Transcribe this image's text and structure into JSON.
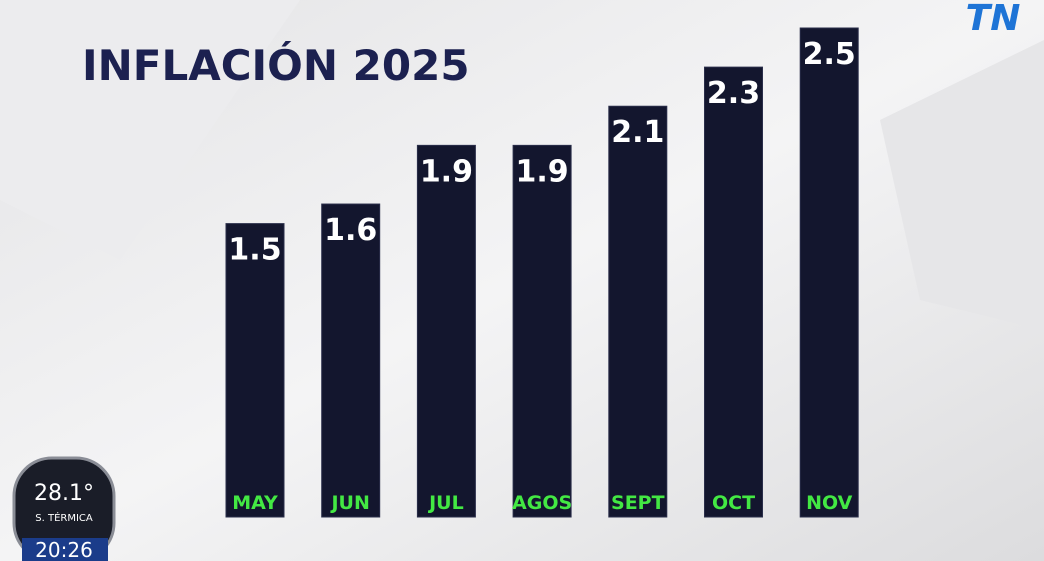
{
  "chart_data": {
    "type": "bar",
    "title": "INFLACIÓN 2025",
    "categories": [
      "MAY",
      "JUN",
      "JUL",
      "AGOS",
      "SEPT",
      "OCT",
      "NOV"
    ],
    "values": [
      1.5,
      1.6,
      1.9,
      1.9,
      2.1,
      2.3,
      2.5
    ],
    "color": "#13162e",
    "label_color": "#43e843"
  },
  "logo": "TN",
  "weather": {
    "temperature": "28.1°",
    "label": "S. TÉRMICA",
    "time": "20:26"
  }
}
